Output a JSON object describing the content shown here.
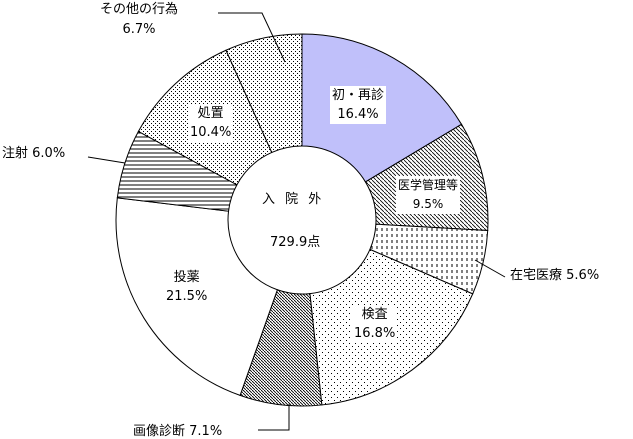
{
  "chart_data": {
    "type": "pie",
    "donut": true,
    "center_title": "入 院 外",
    "center_value": "729.9点",
    "segments": [
      {
        "label": "初・再診",
        "value": 16.4,
        "value_label": "16.4%",
        "fill": "#c0c0fa",
        "pattern": "solid"
      },
      {
        "label": "医学管理等",
        "value": 9.5,
        "value_label": "9.5%",
        "fill": "#ffffff",
        "pattern": "diagonal-fine"
      },
      {
        "label": "在宅医療",
        "value": 5.6,
        "value_label": "5.6%",
        "fill": "#ffffff",
        "pattern": "vertical-dashes"
      },
      {
        "label": "検査",
        "value": 16.8,
        "value_label": "16.8%",
        "fill": "#ffffff",
        "pattern": "sparse-dots"
      },
      {
        "label": "画像診断",
        "value": 7.1,
        "value_label": "7.1%",
        "fill": "#ffffff",
        "pattern": "diagonal-dense"
      },
      {
        "label": "投薬",
        "value": 21.5,
        "value_label": "21.5%",
        "fill": "#ffffff",
        "pattern": "none"
      },
      {
        "label": "注射",
        "value": 6.0,
        "value_label": "6.0%",
        "fill": "#ffffff",
        "pattern": "horizontal-lines"
      },
      {
        "label": "処置",
        "value": 10.4,
        "value_label": "10.4%",
        "fill": "#ffffff",
        "pattern": "dots"
      },
      {
        "label": "その他の行為",
        "value": 6.7,
        "value_label": "6.7%",
        "fill": "#ffffff",
        "pattern": "dots"
      }
    ]
  }
}
